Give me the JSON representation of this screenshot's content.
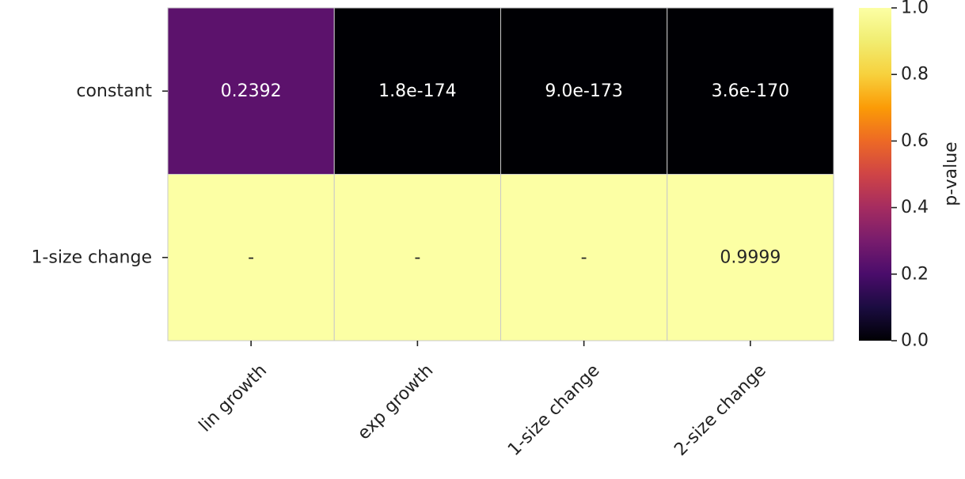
{
  "chart_data": {
    "type": "heatmap",
    "title": "",
    "rows": [
      "constant",
      "1-size change"
    ],
    "columns": [
      "lin growth",
      "exp growth",
      "1-size change",
      "2-size change"
    ],
    "values": [
      [
        0.2392,
        1.8e-174,
        9e-173,
        3.6e-170
      ],
      [
        null,
        null,
        null,
        0.9999
      ]
    ],
    "cell_labels": [
      [
        "0.2392",
        "1.8e-174",
        "9.0e-173",
        "3.6e-170"
      ],
      [
        "-",
        "-",
        "-",
        "0.9999"
      ]
    ],
    "missing_fill_value": 1.0,
    "colormap": "inferno",
    "colorbar": {
      "label": "p-value",
      "range": [
        0.0,
        1.0
      ],
      "ticks": [
        0.0,
        0.2,
        0.4,
        0.6,
        0.8,
        1.0
      ],
      "tick_labels": [
        "0.0",
        "0.2",
        "0.4",
        "0.6",
        "0.8",
        "1.0"
      ]
    },
    "cell_border_color": "#c8c8c8",
    "xtick_rotation": 45
  }
}
